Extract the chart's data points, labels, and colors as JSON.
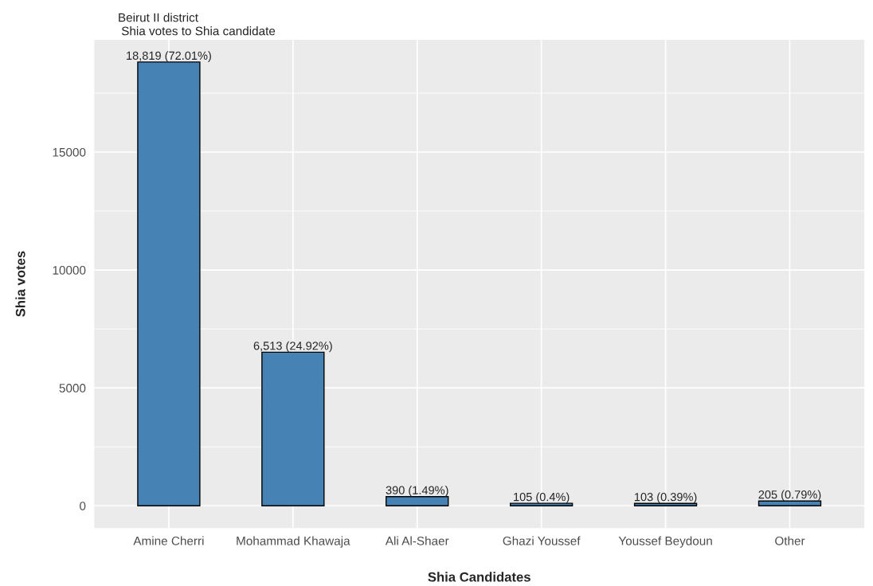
{
  "chart_data": {
    "type": "bar",
    "title": "Beirut II district",
    "subtitle": " Shia votes to Shia candidate",
    "xlabel": "Shia Candidates",
    "ylabel": "Shia votes",
    "categories": [
      "Amine Cherri",
      "Mohammad Khawaja",
      "Ali Al-Shaer",
      "Ghazi Youssef",
      "Youssef Beydoun",
      "Other"
    ],
    "values": [
      18819,
      6513,
      390,
      105,
      103,
      205
    ],
    "value_labels": [
      "18,819 (72.01%)",
      "6,513 (24.92%)",
      "390 (1.49%)",
      "105 (0.4%)",
      "103 (0.39%)",
      "205 (0.79%)"
    ],
    "color": "#4682b4",
    "ylim": [
      -941,
      19760
    ],
    "yticks": [
      0,
      5000,
      10000,
      15000
    ],
    "grid": true
  }
}
